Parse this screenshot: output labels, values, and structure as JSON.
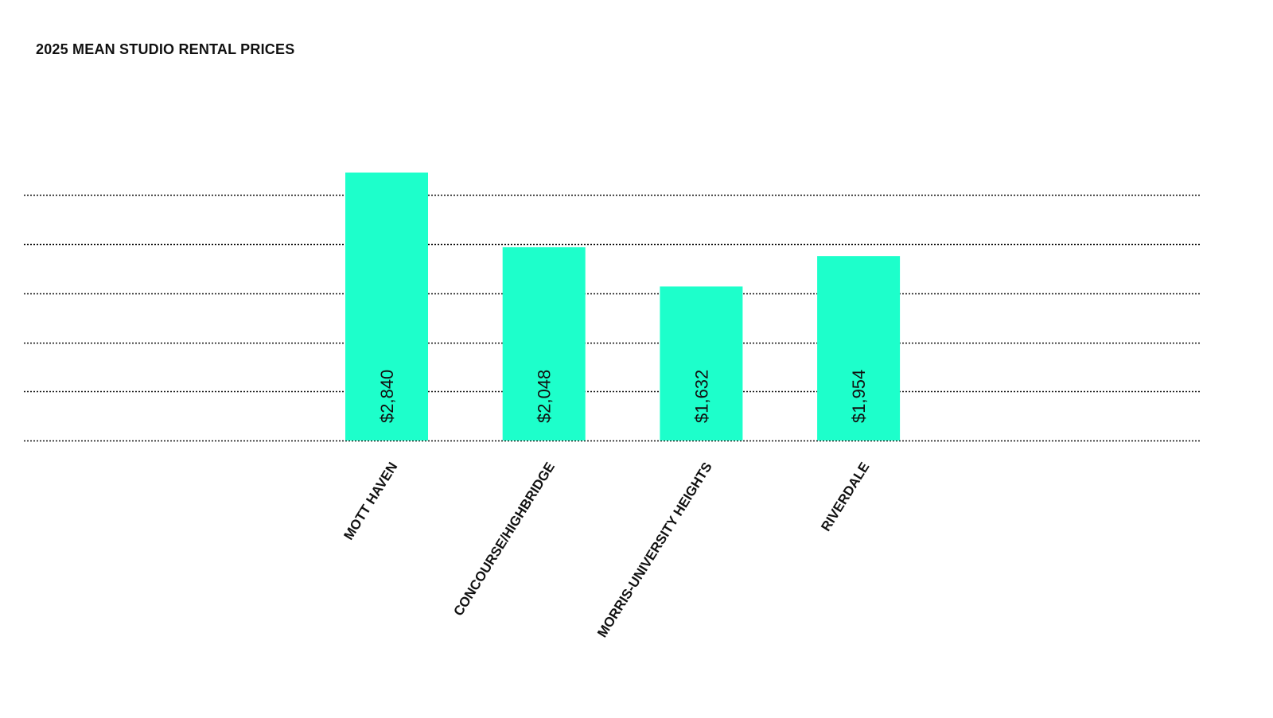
{
  "chart_data": {
    "type": "bar",
    "title": "2025 MEAN STUDIO RENTAL PRICES",
    "xlabel": "",
    "ylabel": "",
    "categories": [
      "MOTT HAVEN",
      "CONCOURSE/HIGHBRIDGE",
      "MORRIS-UNIVERSITY HEIGHTS",
      "RIVERDALE"
    ],
    "values": [
      2840,
      2048,
      1632,
      1954
    ],
    "value_labels": [
      "$2,840",
      "$2,048",
      "$1,632",
      "$1,954"
    ],
    "ylim": [
      0,
      3000
    ],
    "gridlines": [
      0,
      520,
      1040,
      1560,
      2080,
      2600
    ],
    "grid": true,
    "grid_style": "dotted",
    "bar_color": "#1dffcb",
    "text_color": "#111111"
  }
}
